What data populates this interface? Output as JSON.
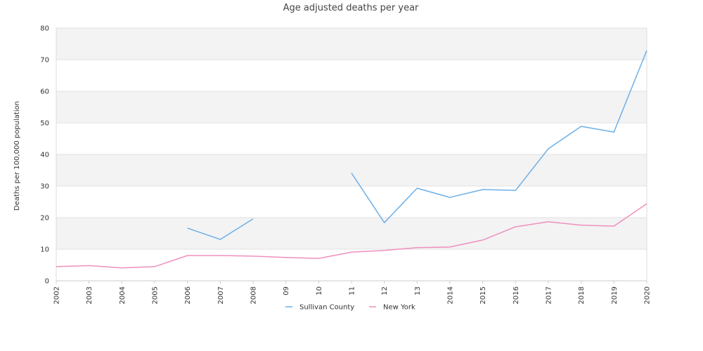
{
  "chart_data": {
    "type": "line",
    "title": "Age adjusted deaths per year",
    "xlabel": "",
    "ylabel": "Deaths per 100,000 population",
    "ylim": [
      0,
      80
    ],
    "yticks": [
      "0",
      "10",
      "20",
      "30",
      "40",
      "50",
      "60",
      "70",
      "80"
    ],
    "categories": [
      "2002",
      "2003",
      "2004",
      "2005",
      "2006",
      "2007",
      "2008",
      "09",
      "10",
      "11",
      "12",
      "13",
      "2014",
      "2015",
      "2016",
      "2017",
      "2018",
      "2019",
      "2020"
    ],
    "grid": true,
    "legend_position": "bottom",
    "series": [
      {
        "name": "Sullivan County",
        "color": "#6cb0e8",
        "values": [
          null,
          null,
          null,
          null,
          16.7,
          13.1,
          19.6,
          null,
          null,
          34.1,
          18.4,
          29.3,
          26.4,
          28.9,
          28.6,
          41.8,
          48.9,
          47.1,
          72.9
        ]
      },
      {
        "name": "New York",
        "color": "#ef8fbe",
        "values": [
          4.5,
          4.8,
          4.1,
          4.5,
          8.0,
          8.0,
          7.8,
          7.4,
          7.1,
          9.1,
          9.6,
          10.5,
          10.7,
          12.9,
          17.1,
          18.7,
          17.6,
          17.3,
          24.4
        ]
      }
    ]
  }
}
